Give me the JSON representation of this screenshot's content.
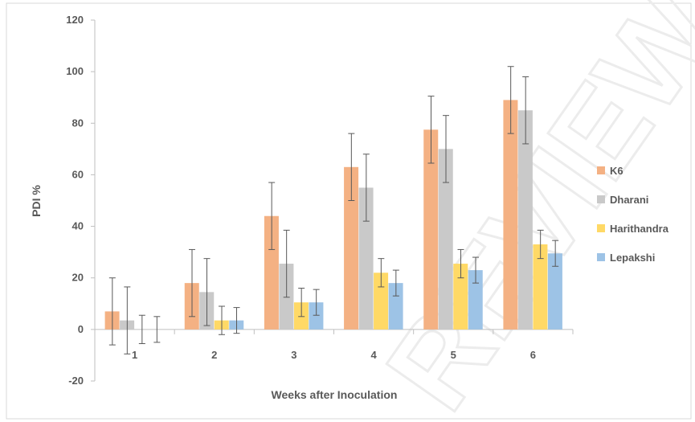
{
  "watermark": "REVIEW",
  "chart_data": {
    "type": "bar",
    "title": "",
    "xlabel": "Weeks  after Inoculation",
    "ylabel": "PDI  %",
    "ylim": [
      -20,
      120
    ],
    "yticks": [
      -20,
      0,
      20,
      40,
      60,
      80,
      100,
      120
    ],
    "grid": false,
    "legend_position": "right",
    "categories": [
      "1",
      "2",
      "3",
      "4",
      "5",
      "6"
    ],
    "series": [
      {
        "name": "K6",
        "color": "#f4b183",
        "values": [
          7,
          18,
          44,
          63,
          77.5,
          89
        ],
        "errors": [
          13,
          13,
          13,
          13,
          13,
          13
        ]
      },
      {
        "name": "Dharani",
        "color": "#c9c9c9",
        "values": [
          3.5,
          14.5,
          25.5,
          55,
          70,
          85
        ],
        "errors": [
          13,
          13,
          13,
          13,
          13,
          13
        ]
      },
      {
        "name": "Harithandra",
        "color": "#ffd966",
        "values": [
          0,
          3.5,
          10.5,
          22,
          25.5,
          33
        ],
        "errors": [
          5.5,
          5.5,
          5.5,
          5.5,
          5.5,
          5.5
        ]
      },
      {
        "name": "Lepakshi",
        "color": "#9dc3e6",
        "values": [
          0,
          3.5,
          10.5,
          18,
          23,
          29.5
        ],
        "errors": [
          5,
          5,
          5,
          5,
          5,
          5
        ]
      }
    ]
  }
}
